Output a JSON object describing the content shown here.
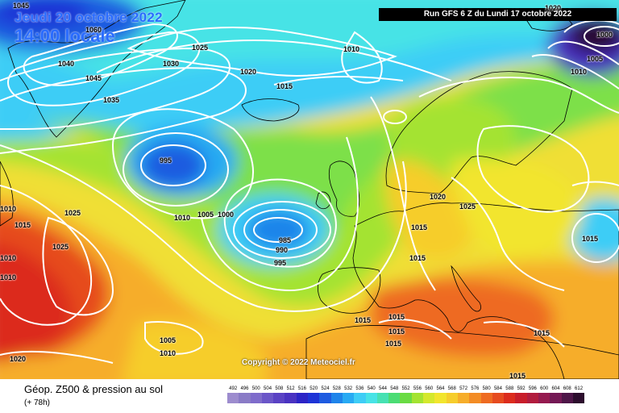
{
  "header": {
    "date": "Jeudi 20 octobre 2022",
    "hour": "14:00 locale",
    "run": "Run GFS 6 Z du Lundi 17 octobre 2022"
  },
  "copyright": "Copyright © 2022 Meteociel.fr",
  "footer": {
    "title": "Géop. Z500 & pression au sol",
    "subtitle": "(+ 78h)"
  },
  "colors": {
    "blue_low": "#1f5bd6",
    "cyan": "#5ad9f0",
    "green": "#7de04a",
    "yellow": "#f7e23a",
    "orange": "#f79a2a",
    "red": "#e33a2a",
    "isobar": "#ffffff",
    "coast": "#000000"
  },
  "legend_scale": [
    {
      "label": "492",
      "color": "#9d8cce"
    },
    {
      "label": "496",
      "color": "#8a7bc6"
    },
    {
      "label": "500",
      "color": "#7f6ccb"
    },
    {
      "label": "504",
      "color": "#6b56c8"
    },
    {
      "label": "508",
      "color": "#5a42c4"
    },
    {
      "label": "512",
      "color": "#4a32c1"
    },
    {
      "label": "516",
      "color": "#2c24c6"
    },
    {
      "label": "520",
      "color": "#1e34d6"
    },
    {
      "label": "524",
      "color": "#1e5be0"
    },
    {
      "label": "528",
      "color": "#1f84ea"
    },
    {
      "label": "532",
      "color": "#28aaf3"
    },
    {
      "label": "536",
      "color": "#3ecdf6"
    },
    {
      "label": "540",
      "color": "#47e3e6"
    },
    {
      "label": "544",
      "color": "#46e1b2"
    },
    {
      "label": "548",
      "color": "#4bdc74"
    },
    {
      "label": "552",
      "color": "#6adb43"
    },
    {
      "label": "556",
      "color": "#a4e331"
    },
    {
      "label": "560",
      "color": "#d4e82d"
    },
    {
      "label": "564",
      "color": "#f2e52d"
    },
    {
      "label": "568",
      "color": "#f6cd2c"
    },
    {
      "label": "572",
      "color": "#f6ad2a"
    },
    {
      "label": "576",
      "color": "#f38c25"
    },
    {
      "label": "580",
      "color": "#ee6b21"
    },
    {
      "label": "584",
      "color": "#e64b1f"
    },
    {
      "label": "588",
      "color": "#dc2c1d"
    },
    {
      "label": "592",
      "color": "#c81d2a"
    },
    {
      "label": "596",
      "color": "#b11c3e"
    },
    {
      "label": "600",
      "color": "#951a4f"
    },
    {
      "label": "604",
      "color": "#741955"
    },
    {
      "label": "608",
      "color": "#4e1648"
    },
    {
      "label": "612",
      "color": "#2c0d2d"
    }
  ],
  "pressure_labels": [
    {
      "text": "1045"
    },
    {
      "text": "1040"
    },
    {
      "text": "1045"
    },
    {
      "text": "1035"
    },
    {
      "text": "1030"
    },
    {
      "text": "1025"
    },
    {
      "text": "1020"
    },
    {
      "text": "1015"
    },
    {
      "text": "1010"
    },
    {
      "text": "1000"
    },
    {
      "text": "1005"
    },
    {
      "text": "1010"
    },
    {
      "text": "995"
    },
    {
      "text": "1010"
    },
    {
      "text": "1005"
    },
    {
      "text": "1000"
    },
    {
      "text": "985"
    },
    {
      "text": "990"
    },
    {
      "text": "995"
    },
    {
      "text": "1010"
    },
    {
      "text": "1015"
    },
    {
      "text": "1025"
    },
    {
      "text": "1025"
    },
    {
      "text": "1010"
    },
    {
      "text": "1010"
    },
    {
      "text": "1020"
    },
    {
      "text": "1020"
    },
    {
      "text": "1025"
    },
    {
      "text": "1015"
    },
    {
      "text": "1015"
    },
    {
      "text": "1015"
    },
    {
      "text": "1015"
    },
    {
      "text": "1015"
    },
    {
      "text": "1015"
    },
    {
      "text": "1015"
    },
    {
      "text": "1005"
    },
    {
      "text": "1010"
    },
    {
      "text": "1020"
    },
    {
      "text": "1015"
    },
    {
      "text": "1015"
    },
    {
      "text": "1060"
    }
  ]
}
